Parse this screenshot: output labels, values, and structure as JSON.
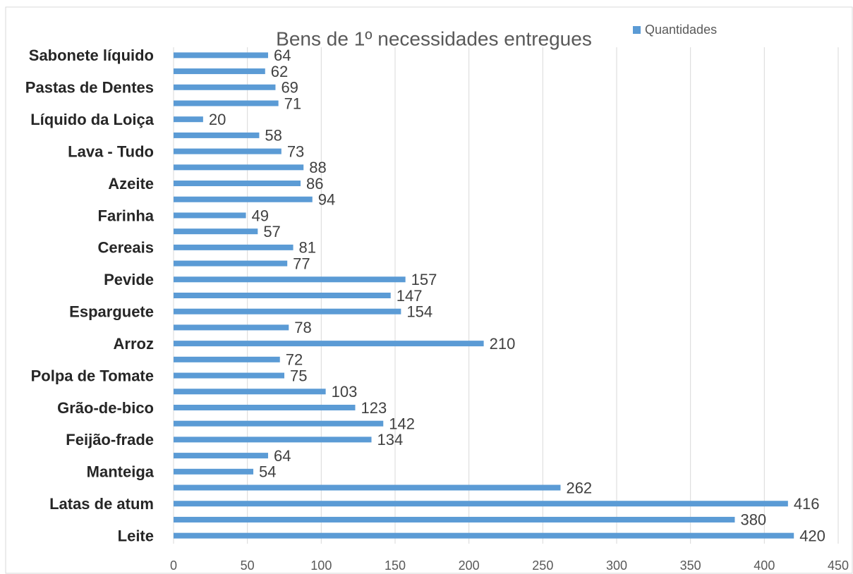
{
  "chart_data": {
    "type": "bar",
    "orientation": "horizontal",
    "title": "Bens de 1º necessidades entregues",
    "categories": [
      "Leite",
      null,
      "Latas de atum",
      null,
      "Manteiga",
      null,
      "Feijão-frade",
      null,
      "Grão-de-bico",
      null,
      "Polpa de Tomate",
      null,
      "Arroz",
      null,
      "Esparguete",
      null,
      "Pevide",
      null,
      "Cereais",
      null,
      "Farinha",
      null,
      "Azeite",
      null,
      "Lava - Tudo",
      null,
      "Líquido da Loiça",
      null,
      "Pastas de Dentes",
      null,
      "Sabonete líquido"
    ],
    "series": [
      {
        "name": "Quantidades",
        "color": "#5b9bd5",
        "values": [
          420,
          380,
          416,
          262,
          54,
          64,
          134,
          142,
          123,
          103,
          75,
          72,
          210,
          78,
          154,
          147,
          157,
          77,
          81,
          57,
          49,
          94,
          86,
          88,
          73,
          58,
          20,
          71,
          69,
          62,
          64
        ]
      }
    ],
    "xlim": [
      0,
      450
    ],
    "xticks": [
      0,
      50,
      100,
      150,
      200,
      250,
      300,
      350,
      400,
      450
    ],
    "grid": true,
    "legend": "top-right"
  }
}
